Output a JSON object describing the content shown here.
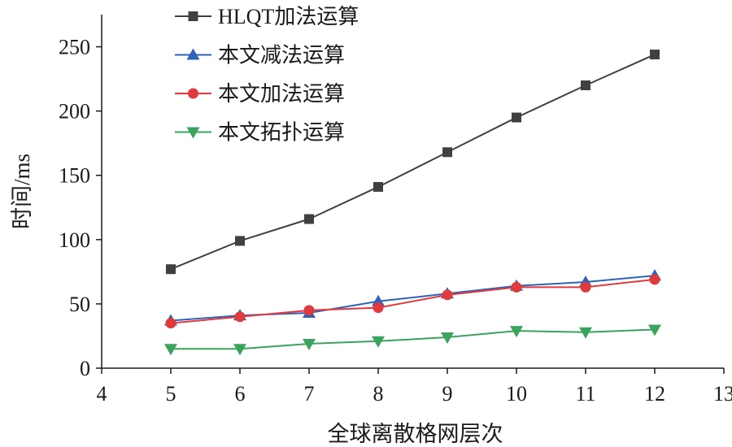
{
  "chart_data": {
    "type": "line",
    "title": "",
    "xlabel": "全球离散格网层次",
    "ylabel": "时间/ms",
    "xlim": [
      4,
      13
    ],
    "ylim": [
      0,
      275
    ],
    "xticks": [
      4,
      5,
      6,
      7,
      8,
      9,
      10,
      11,
      12,
      13
    ],
    "yticks": [
      0,
      50,
      100,
      150,
      200,
      250
    ],
    "grid": false,
    "legend_position": "top-left",
    "x": [
      5,
      6,
      7,
      8,
      9,
      10,
      11,
      12
    ],
    "series": [
      {
        "name": "HLQT加法运算",
        "marker": "square",
        "color": "#404040",
        "values": [
          77,
          99,
          116,
          141,
          168,
          195,
          220,
          244
        ]
      },
      {
        "name": "本文减法运算",
        "marker": "triangle-up",
        "color": "#2e63b8",
        "values": [
          37,
          41,
          43,
          52,
          58,
          64,
          67,
          72
        ]
      },
      {
        "name": "本文加法运算",
        "marker": "circle",
        "color": "#e03a3e",
        "values": [
          35,
          40,
          45,
          47,
          57,
          63,
          63,
          69
        ]
      },
      {
        "name": "本文拓扑运算",
        "marker": "triangle-down",
        "color": "#3aa45c",
        "values": [
          15,
          15,
          19,
          21,
          24,
          29,
          28,
          30
        ]
      }
    ]
  }
}
